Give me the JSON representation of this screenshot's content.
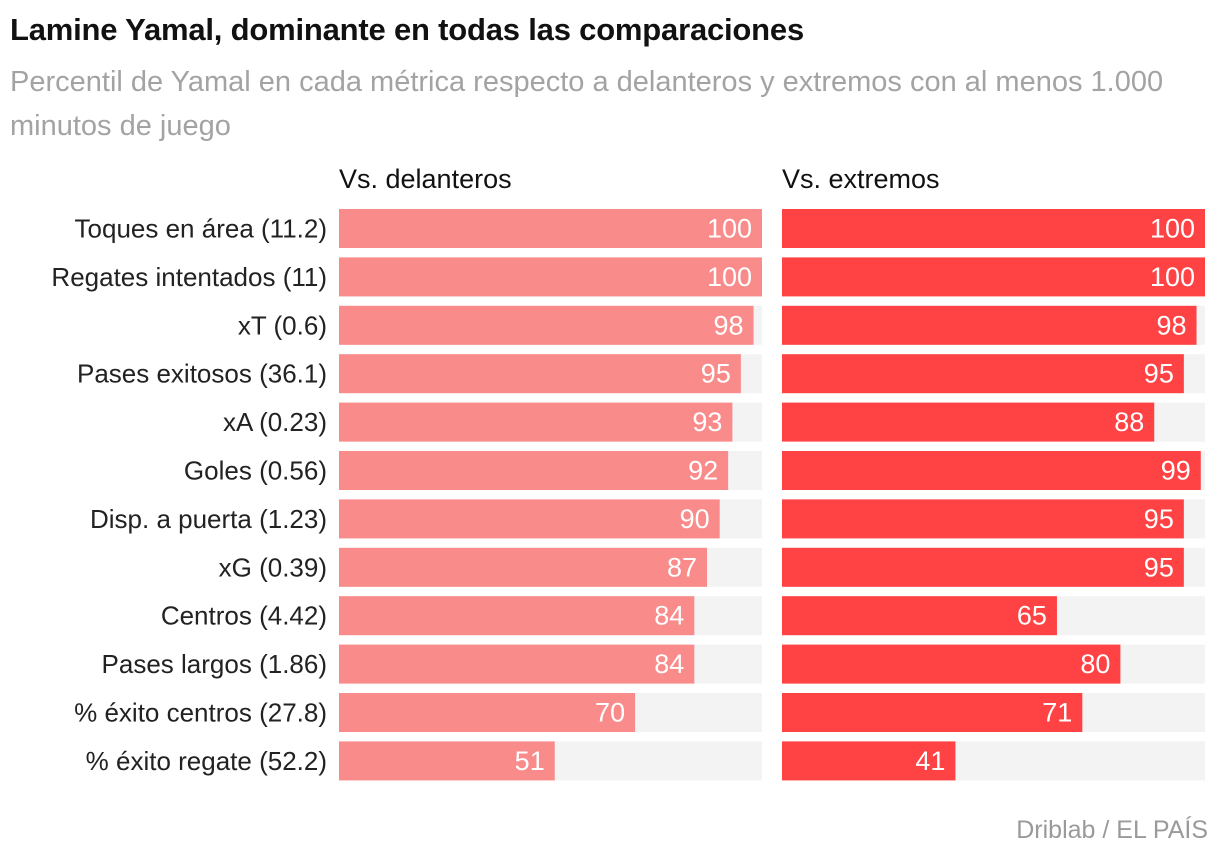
{
  "title": "Lamine Yamal, dominante en todas las comparaciones",
  "subtitle": "Percentil de Yamal en cada métrica respecto a delanteros y extremos con al menos 1.000 minutos de juego",
  "source": "Driblab / EL PAÍS",
  "colors": {
    "delanteros": "#f98b8b",
    "extremos": "#ff4243",
    "track": "#f3f3f3"
  },
  "chart_data": {
    "type": "bar",
    "orientation": "horizontal",
    "xlim": [
      0,
      100
    ],
    "categories": [
      "Toques en área (11.2)",
      "Regates intentados (11)",
      "xT (0.6)",
      "Pases exitosos (36.1)",
      "xA (0.23)",
      "Goles (0.56)",
      "Disp. a puerta (1.23)",
      "xG (0.39)",
      "Centros (4.42)",
      "Pases largos (1.86)",
      "% éxito centros (27.8)",
      "% éxito regate (52.2)"
    ],
    "series": [
      {
        "name": "Vs. delanteros",
        "values": [
          100,
          100,
          98,
          95,
          93,
          92,
          90,
          87,
          84,
          84,
          70,
          51
        ]
      },
      {
        "name": "Vs. extremos",
        "values": [
          100,
          100,
          98,
          95,
          88,
          99,
          95,
          95,
          65,
          80,
          71,
          41
        ]
      }
    ]
  }
}
